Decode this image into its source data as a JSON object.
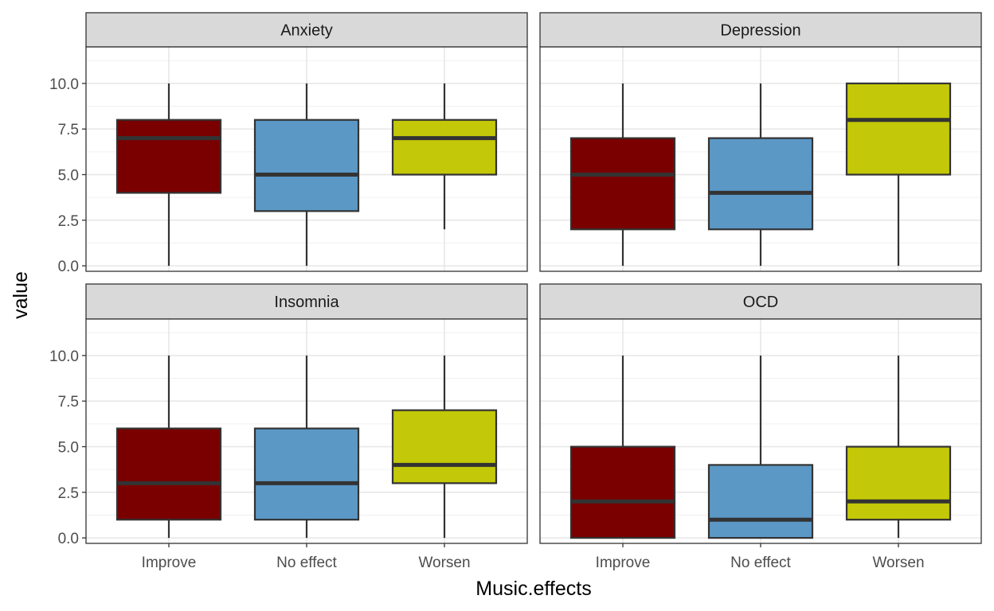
{
  "chart_data": {
    "type": "boxplot",
    "xlabel": "Music.effects",
    "ylabel": "value",
    "ylim": [
      -0.3,
      12.0
    ],
    "yticks": [
      "0.0",
      "2.5",
      "5.0",
      "7.5",
      "10.0"
    ],
    "categories": [
      "Improve",
      "No effect",
      "Worsen"
    ],
    "colors": {
      "Improve": "#7a0000",
      "No effect": "#5b98c6",
      "Worsen": "#c3c808"
    },
    "grid": true,
    "facets": [
      {
        "title": "Anxiety",
        "boxes": [
          {
            "category": "Improve",
            "min": 0,
            "q1": 4,
            "median": 7,
            "q3": 8,
            "max": 10
          },
          {
            "category": "No effect",
            "min": 0,
            "q1": 3,
            "median": 5,
            "q3": 8,
            "max": 10
          },
          {
            "category": "Worsen",
            "min": 2,
            "q1": 5,
            "median": 7,
            "q3": 8,
            "max": 10
          }
        ]
      },
      {
        "title": "Depression",
        "boxes": [
          {
            "category": "Improve",
            "min": 0,
            "q1": 2,
            "median": 5,
            "q3": 7,
            "max": 10
          },
          {
            "category": "No effect",
            "min": 0,
            "q1": 2,
            "median": 4,
            "q3": 7,
            "max": 10
          },
          {
            "category": "Worsen",
            "min": 0,
            "q1": 5,
            "median": 8,
            "q3": 10,
            "max": 10
          }
        ]
      },
      {
        "title": "Insomnia",
        "boxes": [
          {
            "category": "Improve",
            "min": 0,
            "q1": 1,
            "median": 3,
            "q3": 6,
            "max": 10
          },
          {
            "category": "No effect",
            "min": 0,
            "q1": 1,
            "median": 3,
            "q3": 6,
            "max": 10
          },
          {
            "category": "Worsen",
            "min": 0,
            "q1": 3,
            "median": 4,
            "q3": 7,
            "max": 10
          }
        ]
      },
      {
        "title": "OCD",
        "boxes": [
          {
            "category": "Improve",
            "min": 0,
            "q1": 0,
            "median": 2,
            "q3": 5,
            "max": 10
          },
          {
            "category": "No effect",
            "min": 0,
            "q1": 0,
            "median": 1,
            "q3": 4,
            "max": 10
          },
          {
            "category": "Worsen",
            "min": 0,
            "q1": 1,
            "median": 2,
            "q3": 5,
            "max": 10
          }
        ]
      }
    ]
  }
}
